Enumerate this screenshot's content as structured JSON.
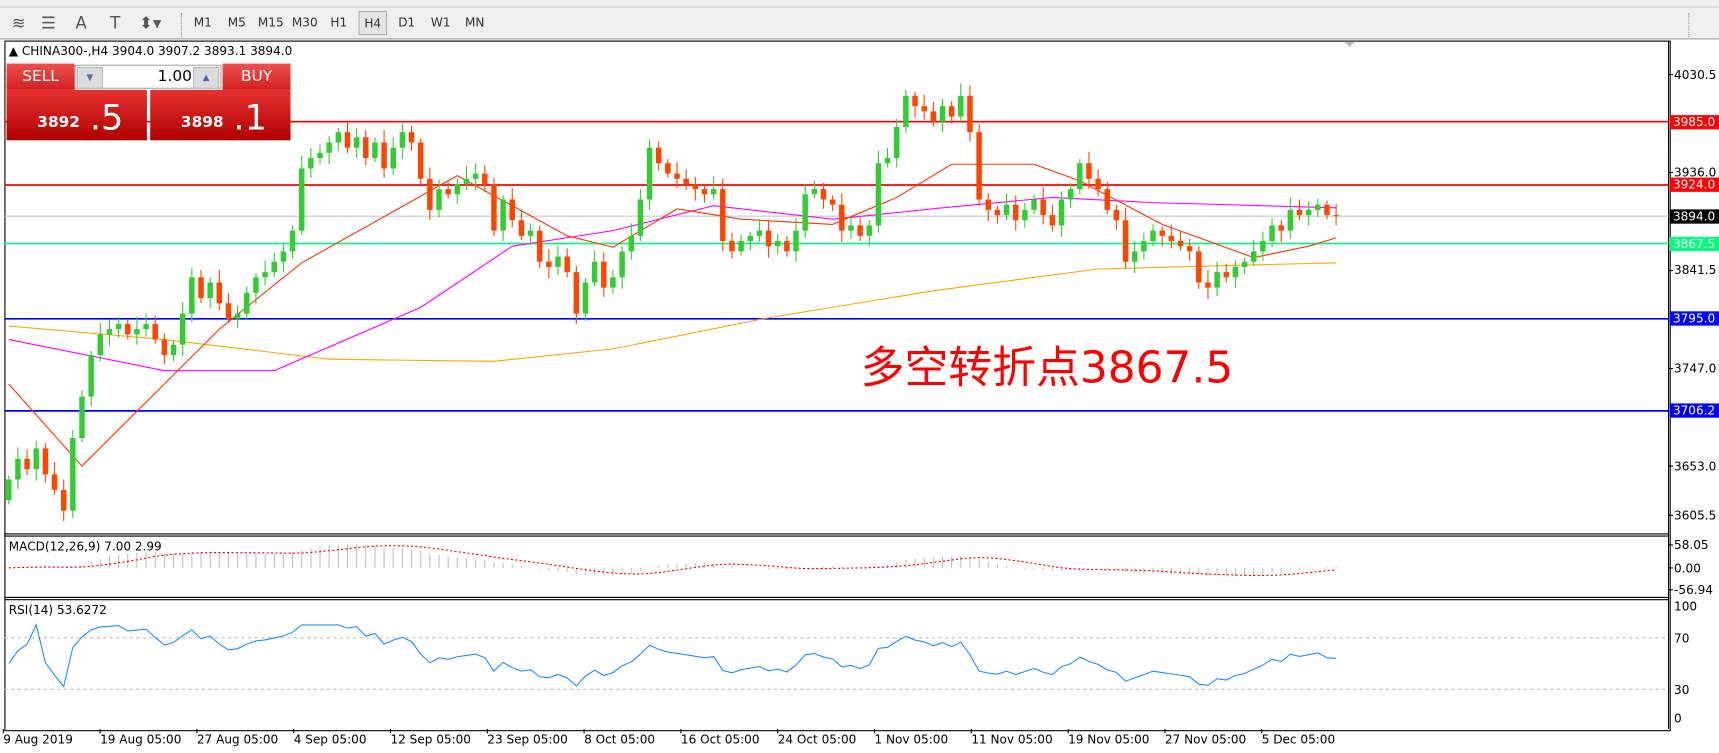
{
  "toolbar": {
    "tools": [
      {
        "name": "elliott-wave-icon",
        "glyph": "≋"
      },
      {
        "name": "fibonacci-icon",
        "glyph": "☰"
      },
      {
        "name": "text-icon",
        "glyph": "A"
      },
      {
        "name": "text-label-icon",
        "glyph": "T"
      },
      {
        "name": "arrows-icon",
        "glyph": "⬍▾"
      }
    ],
    "timeframes": [
      "M1",
      "M5",
      "M15",
      "M30",
      "H1",
      "H4",
      "D1",
      "W1",
      "MN"
    ],
    "active_timeframe": "H4"
  },
  "chart": {
    "header": "CHINA300-,H4  3904.0 3907.2 3893.1 3894.0",
    "trade": {
      "sell_label": "SELL",
      "buy_label": "BUY",
      "volume": "1.00",
      "sell_main": "3892",
      "sell_frac": ".5",
      "buy_main": "3898",
      "buy_frac": ".1"
    },
    "annotation": "多空转折点3867.5",
    "price_axis": [
      "4030.5",
      "3936.0",
      "3841.5",
      "3747.0",
      "3653.0",
      "3605.5"
    ],
    "levels": [
      {
        "value": "3985.0",
        "color": "#ff0000"
      },
      {
        "value": "3924.0",
        "color": "#ff0000"
      },
      {
        "value": "3894.0",
        "color": "#000000",
        "line": "#c0c0c0"
      },
      {
        "value": "3867.5",
        "color": "#00ff7f"
      },
      {
        "value": "3795.0",
        "color": "#0000ff"
      },
      {
        "value": "3706.2",
        "color": "#0000ff"
      }
    ],
    "colors": {
      "bull": "#32cd32",
      "bear": "#ff4500",
      "ma_fast": "#ff3300",
      "ma_mid": "#ff00ff",
      "ma_slow": "#ffa500",
      "rsi": "#1e90ff",
      "macd_signal": "#ff0000",
      "macd_hist": "#c0c0c0"
    },
    "closes": [
      3640,
      3660,
      3650,
      3670,
      3645,
      3630,
      3610,
      3680,
      3720,
      3760,
      3780,
      3785,
      3790,
      3780,
      3785,
      3790,
      3775,
      3760,
      3770,
      3800,
      3835,
      3815,
      3830,
      3810,
      3795,
      3800,
      3820,
      3835,
      3840,
      3850,
      3860,
      3880,
      3940,
      3950,
      3955,
      3965,
      3975,
      3960,
      3970,
      3950,
      3965,
      3940,
      3960,
      3975,
      3965,
      3930,
      3900,
      3920,
      3915,
      3925,
      3930,
      3935,
      3925,
      3880,
      3910,
      3890,
      3875,
      3880,
      3850,
      3845,
      3855,
      3840,
      3800,
      3830,
      3850,
      3825,
      3835,
      3860,
      3875,
      3910,
      3960,
      3945,
      3935,
      3930,
      3925,
      3920,
      3915,
      3920,
      3870,
      3860,
      3870,
      3875,
      3880,
      3865,
      3870,
      3860,
      3880,
      3915,
      3920,
      3910,
      3905,
      3880,
      3885,
      3875,
      3885,
      3945,
      3950,
      3980,
      4010,
      4000,
      3995,
      3985,
      4000,
      3990,
      4010,
      3975,
      3910,
      3900,
      3895,
      3905,
      3890,
      3900,
      3910,
      3895,
      3885,
      3910,
      3920,
      3945,
      3930,
      3920,
      3900,
      3890,
      3850,
      3860,
      3870,
      3880,
      3875,
      3870,
      3865,
      3860,
      3830,
      3825,
      3840,
      3835,
      3845,
      3850,
      3860,
      3870,
      3885,
      3880,
      3900,
      3895,
      3900,
      3905,
      3895,
      3894
    ],
    "first_open": 3620,
    "ma_fast": [
      [
        0,
        3732
      ],
      [
        8,
        3653
      ],
      [
        23,
        3785
      ],
      [
        32,
        3849
      ],
      [
        49,
        3933
      ],
      [
        61,
        3875
      ],
      [
        66,
        3864
      ],
      [
        73,
        3901
      ],
      [
        80,
        3891
      ],
      [
        90,
        3886
      ],
      [
        97,
        3912
      ],
      [
        103,
        3944
      ],
      [
        112,
        3944
      ],
      [
        117,
        3928
      ],
      [
        126,
        3886
      ],
      [
        136,
        3854
      ],
      [
        142,
        3865
      ],
      [
        145,
        3873
      ]
    ],
    "ma_mid": [
      [
        0,
        3775
      ],
      [
        17,
        3745
      ],
      [
        29,
        3745
      ],
      [
        45,
        3806
      ],
      [
        55,
        3865
      ],
      [
        66,
        3880
      ],
      [
        77,
        3904
      ],
      [
        90,
        3891
      ],
      [
        102,
        3902
      ],
      [
        114,
        3912
      ],
      [
        125,
        3907
      ],
      [
        145,
        3902
      ]
    ],
    "ma_slow": [
      [
        0,
        3788
      ],
      [
        17,
        3775
      ],
      [
        35,
        3756
      ],
      [
        53,
        3754
      ],
      [
        66,
        3766
      ],
      [
        83,
        3796
      ],
      [
        101,
        3822
      ],
      [
        119,
        3843
      ],
      [
        145,
        3849
      ]
    ]
  },
  "macd": {
    "label": "MACD(12,26,9) 7.00 2.99",
    "axis": [
      "58.05",
      "0.00",
      "-56.94"
    ]
  },
  "rsi": {
    "label": "RSI(14) 53.6272",
    "axis": [
      "100",
      "70",
      "30",
      "0"
    ]
  },
  "dates": [
    "9 Aug 2019",
    "19 Aug 05:00",
    "27 Aug 05:00",
    "4 Sep 05:00",
    "12 Sep 05:00",
    "23 Sep 05:00",
    "8 Oct 05:00",
    "16 Oct 05:00",
    "24 Oct 05:00",
    "1 Nov 05:00",
    "11 Nov 05:00",
    "19 Nov 05:00",
    "27 Nov 05:00",
    "5 Dec 05:00"
  ]
}
